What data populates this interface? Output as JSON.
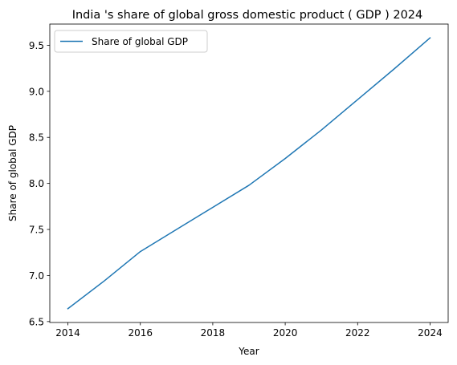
{
  "chart_data": {
    "type": "line",
    "title": "India 's share of global gross domestic product ( GDP ) 2024",
    "xlabel": "Year",
    "ylabel": "Share of global GDP",
    "x": [
      2014,
      2015,
      2016,
      2017,
      2018,
      2019,
      2020,
      2021,
      2022,
      2023,
      2024
    ],
    "series": [
      {
        "name": "Share of global GDP",
        "values": [
          6.64,
          6.94,
          7.26,
          7.5,
          7.74,
          7.98,
          8.27,
          8.58,
          8.91,
          9.24,
          9.58
        ],
        "color": "#1f77b4"
      }
    ],
    "xlim": [
      2013.5,
      2024.5
    ],
    "ylim": [
      6.49,
      9.73
    ],
    "xticks": [
      2014,
      2016,
      2018,
      2020,
      2022,
      2024
    ],
    "yticks": [
      6.5,
      7.0,
      7.5,
      8.0,
      8.5,
      9.0,
      9.5
    ],
    "ytick_labels": [
      "6.5",
      "7.0",
      "7.5",
      "8.0",
      "8.5",
      "9.0",
      "9.5"
    ],
    "grid": false,
    "legend_position": "upper-left"
  }
}
